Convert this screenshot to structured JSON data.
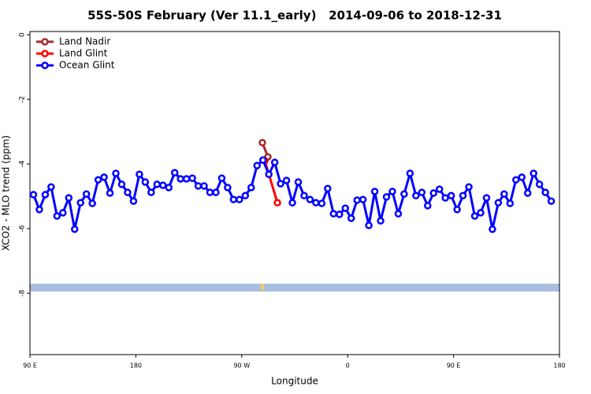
{
  "chart_data": {
    "type": "line",
    "title": "55S-50S February (Ver 11.1_early)   2014-09-06 to 2018-12-31",
    "x_label": "Longitude",
    "y_label": "XCO2 - MLO trend (ppm)",
    "xlim": [
      90,
      540
    ],
    "ylim": [
      -9.9,
      0.1
    ],
    "xticks": [
      {
        "value": 90,
        "label": "90 E"
      },
      180,
      {
        "value": 270,
        "label": "90 W"
      },
      {
        "value": 360,
        "label": "0"
      },
      {
        "value": 450,
        "label": "90 E"
      },
      {
        "value": 540,
        "label": "180"
      }
    ],
    "yticks": [
      0,
      -2,
      -4,
      -6,
      -8
    ],
    "legend": "top-left",
    "series": [
      {
        "name": "Land Nadir",
        "color": "#a52a2a",
        "x": [
          287.5,
          292.2
        ],
        "values": [
          -3.34,
          -3.78
        ]
      },
      {
        "name": "Land Glint",
        "color": "#ff0000",
        "x": [
          289.6,
          300.3
        ],
        "values": [
          -3.9,
          -5.2
        ]
      },
      {
        "name": "Ocean Glint",
        "color": "#0000ff",
        "x": [
          93,
          98,
          103,
          108,
          113,
          118,
          123,
          128,
          133,
          138,
          143,
          148,
          153,
          158,
          163,
          168,
          173,
          178,
          183,
          188,
          193,
          198,
          203,
          208,
          213,
          218,
          223,
          228,
          233,
          238,
          243,
          248,
          253,
          258,
          263,
          268,
          273,
          278,
          283,
          288,
          293,
          298,
          303,
          308,
          313,
          318,
          323,
          328,
          333,
          338,
          343,
          348,
          353,
          358,
          363,
          368,
          373,
          378,
          383,
          388,
          393,
          398,
          403,
          408,
          413,
          418,
          423,
          428,
          433,
          438,
          443,
          448,
          453,
          458,
          463,
          468,
          473,
          478,
          483,
          488,
          493,
          498,
          503,
          508,
          513,
          518,
          523,
          528,
          533
        ],
        "values": [
          -4.95,
          -5.41,
          -4.95,
          -4.71,
          -5.61,
          -5.51,
          -5.05,
          -6.02,
          -5.2,
          -4.93,
          -5.22,
          -4.49,
          -4.41,
          -4.9,
          -4.29,
          -4.63,
          -4.88,
          -5.15,
          -4.32,
          -4.56,
          -4.88,
          -4.63,
          -4.66,
          -4.73,
          -4.27,
          -4.46,
          -4.46,
          -4.44,
          -4.68,
          -4.68,
          -4.88,
          -4.88,
          -4.44,
          -4.73,
          -5.1,
          -5.1,
          -4.98,
          -4.73,
          -4.05,
          -3.88,
          -4.32,
          -3.95,
          -4.61,
          -4.51,
          -5.2,
          -4.56,
          -4.98,
          -5.1,
          -5.2,
          -5.22,
          -4.76,
          -5.54,
          -5.56,
          -5.37,
          -5.68,
          -5.12,
          -5.1,
          -5.9,
          -4.85,
          -5.76,
          -5.02,
          -4.85,
          -5.54,
          -4.93,
          -4.29,
          -4.98,
          -4.88,
          -5.29,
          -4.9,
          -4.78,
          -5.05,
          -4.98,
          -5.41,
          -4.98,
          -4.71,
          -5.61,
          -5.51,
          -5.05,
          -6.02,
          -5.2,
          -4.93,
          -5.22,
          -4.49,
          -4.41,
          -4.9,
          -4.29,
          -4.63,
          -4.88,
          -5.15
        ]
      }
    ]
  }
}
